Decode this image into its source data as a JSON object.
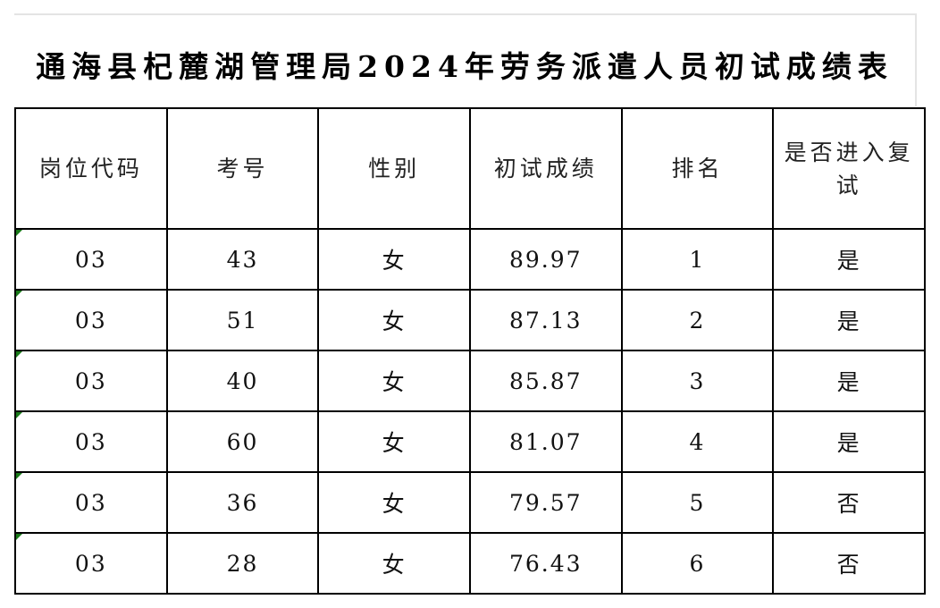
{
  "title": "通海县杞麓湖管理局2024年劳务派遣人员初试成绩表",
  "columns": [
    "岗位代码",
    "考号",
    "性别",
    "初试成绩",
    "排名",
    "是否进入复试"
  ],
  "rows": [
    [
      "03",
      "43",
      "女",
      "89.97",
      "1",
      "是"
    ],
    [
      "03",
      "51",
      "女",
      "87.13",
      "2",
      "是"
    ],
    [
      "03",
      "40",
      "女",
      "85.87",
      "3",
      "是"
    ],
    [
      "03",
      "60",
      "女",
      "81.07",
      "4",
      "是"
    ],
    [
      "03",
      "36",
      "女",
      "79.57",
      "5",
      "否"
    ],
    [
      "03",
      "28",
      "女",
      "76.43",
      "6",
      "否"
    ]
  ],
  "colors": {
    "cell_marker": "#1a7a1a",
    "border": "#000000"
  }
}
